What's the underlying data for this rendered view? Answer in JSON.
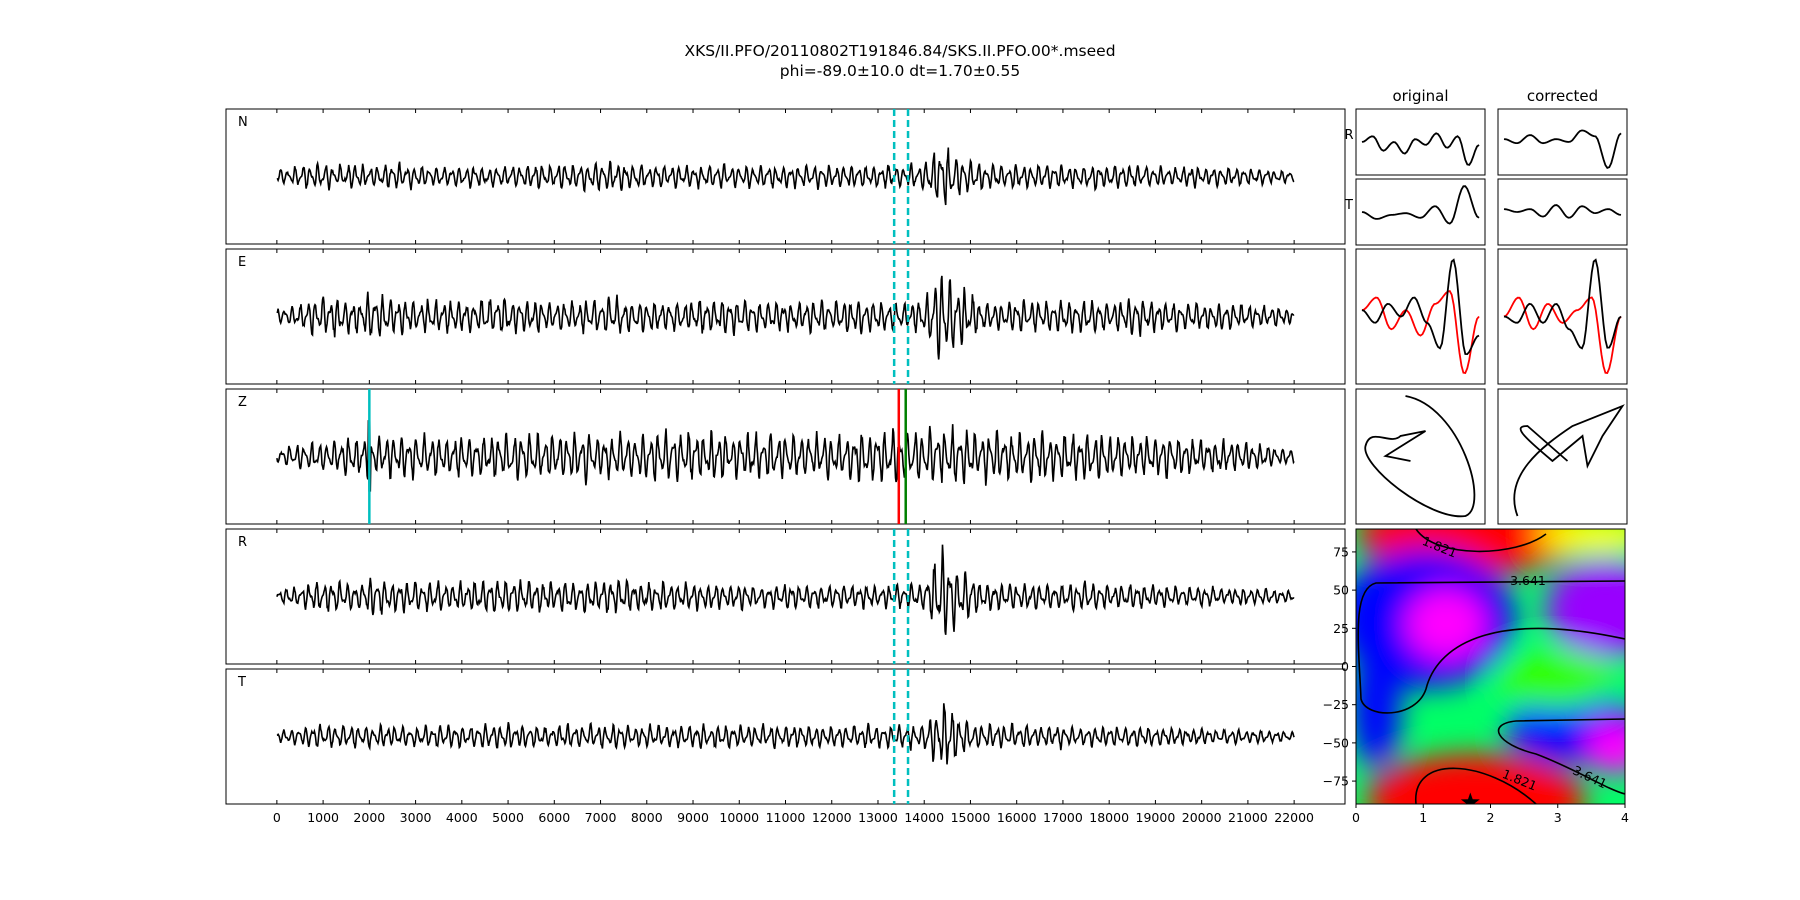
{
  "figure": {
    "title_line1": "XKS/II.PFO/20110802T191846.84/SKS.II.PFO.00*.mseed",
    "title_line2": "phi=-89.0±10.0 dt=1.70±0.55"
  },
  "colors": {
    "trace": "#000000",
    "window_marker": "#00bfbf",
    "pick_red": "#ff0000",
    "pick_green": "#008000",
    "pick_cyan": "#00bfbf"
  },
  "chart_data": [
    {
      "type": "line",
      "description_id": "seismograms",
      "traces": [
        {
          "label": "N",
          "envelope": [
            0.25,
            0.35,
            0.45,
            0.4,
            0.45,
            0.4,
            0.45,
            0.4,
            0.35,
            0.4,
            0.4,
            0.35,
            0.4,
            0.45,
            0.45,
            0.45,
            0.5,
            0.5,
            0.45,
            0.4,
            0.4,
            0.4,
            0.4,
            0.4,
            0.4,
            0.4,
            0.4,
            0.4,
            0.4,
            0.4,
            0.4,
            0.4,
            0.4,
            0.45,
            1.2,
            0.7,
            0.45,
            0.4,
            0.4,
            0.45,
            0.4,
            0.4,
            0.45,
            0.4,
            0.4,
            0.35,
            0.35,
            0.35,
            0.35,
            0.3,
            0.3,
            0.25,
            0.2
          ]
        },
        {
          "label": "E",
          "envelope": [
            0.25,
            0.4,
            0.65,
            0.7,
            0.55,
            0.85,
            0.6,
            0.55,
            0.6,
            0.55,
            0.55,
            0.65,
            0.7,
            0.6,
            0.55,
            0.55,
            0.55,
            0.65,
            0.6,
            0.55,
            0.55,
            0.55,
            0.6,
            0.65,
            0.55,
            0.55,
            0.5,
            0.55,
            0.55,
            0.6,
            0.6,
            0.55,
            0.5,
            0.55,
            1.7,
            1.1,
            0.55,
            0.5,
            0.55,
            0.5,
            0.55,
            0.6,
            0.55,
            0.6,
            0.65,
            0.55,
            0.5,
            0.5,
            0.45,
            0.45,
            0.4,
            0.35,
            0.25
          ]
        },
        {
          "label": "Z",
          "envelope": [
            0.25,
            0.45,
            0.55,
            0.6,
            0.65,
            0.7,
            0.7,
            0.75,
            0.75,
            0.75,
            0.75,
            0.75,
            0.8,
            0.8,
            0.85,
            0.85,
            0.85,
            0.8,
            0.8,
            0.8,
            0.85,
            0.85,
            0.8,
            0.8,
            0.75,
            0.8,
            0.8,
            0.8,
            0.8,
            0.8,
            0.9,
            0.95,
            0.9,
            0.95,
            1.0,
            0.95,
            0.85,
            0.85,
            0.8,
            0.8,
            0.8,
            0.8,
            0.8,
            0.75,
            0.75,
            0.75,
            0.7,
            0.65,
            0.6,
            0.55,
            0.5,
            0.4,
            0.25
          ]
        },
        {
          "label": "R",
          "envelope": [
            0.25,
            0.35,
            0.5,
            0.55,
            0.5,
            0.75,
            0.55,
            0.5,
            0.55,
            0.5,
            0.55,
            0.6,
            0.65,
            0.6,
            0.55,
            0.55,
            0.55,
            0.6,
            0.55,
            0.5,
            0.5,
            0.45,
            0.45,
            0.45,
            0.45,
            0.4,
            0.4,
            0.4,
            0.4,
            0.45,
            0.4,
            0.4,
            0.4,
            0.45,
            1.7,
            1.0,
            0.55,
            0.45,
            0.45,
            0.45,
            0.45,
            0.5,
            0.45,
            0.45,
            0.4,
            0.4,
            0.35,
            0.35,
            0.35,
            0.3,
            0.3,
            0.25,
            0.2
          ]
        },
        {
          "label": "T",
          "envelope": [
            0.2,
            0.3,
            0.4,
            0.4,
            0.4,
            0.4,
            0.35,
            0.35,
            0.4,
            0.4,
            0.4,
            0.4,
            0.45,
            0.4,
            0.35,
            0.4,
            0.4,
            0.4,
            0.4,
            0.4,
            0.4,
            0.4,
            0.4,
            0.4,
            0.4,
            0.4,
            0.4,
            0.4,
            0.4,
            0.4,
            0.4,
            0.4,
            0.4,
            0.45,
            1.3,
            0.7,
            0.4,
            0.4,
            0.4,
            0.35,
            0.4,
            0.35,
            0.35,
            0.35,
            0.35,
            0.3,
            0.3,
            0.3,
            0.25,
            0.25,
            0.25,
            0.2,
            0.15
          ]
        }
      ],
      "x_range": [
        -1100,
        23100
      ],
      "x_data_extent": [
        0,
        22000
      ],
      "x_ticks": [
        "0",
        "1000",
        "2000",
        "3000",
        "4000",
        "5000",
        "6000",
        "7000",
        "8000",
        "9000",
        "10000",
        "11000",
        "12000",
        "13000",
        "14000",
        "15000",
        "16000",
        "17000",
        "18000",
        "19000",
        "20000",
        "21000",
        "22000"
      ],
      "window_lines": [
        13350,
        13650
      ],
      "picks": [
        {
          "x": 2000,
          "color": "cyan"
        },
        {
          "x": 13450,
          "color": "red"
        },
        {
          "x": 13600,
          "color": "green"
        }
      ],
      "grid": false
    },
    {
      "type": "line",
      "description_id": "particle_motion_panels",
      "columns": [
        "original",
        "corrected"
      ],
      "row_labels": [
        "R",
        "T"
      ],
      "original_R": [
        0.5,
        0.6,
        0.35,
        0.5,
        0.3,
        0.55,
        0.45,
        0.65,
        0.4,
        0.6,
        0.1,
        0.45
      ],
      "original_T": [
        0.5,
        0.38,
        0.45,
        0.48,
        0.4,
        0.6,
        0.3,
        0.95,
        0.4
      ],
      "corrected_R": [
        0.55,
        0.48,
        0.62,
        0.48,
        0.55,
        0.5,
        0.7,
        0.6,
        0.05,
        0.65
      ],
      "corrected_T": [
        0.55,
        0.5,
        0.55,
        0.42,
        0.62,
        0.4,
        0.6,
        0.48,
        0.55,
        0.45
      ],
      "original_pair_red": [
        0.55,
        0.65,
        0.4,
        0.55,
        0.35,
        0.6,
        0.7,
        0.05,
        0.5
      ],
      "original_pair_black": [
        0.55,
        0.45,
        0.6,
        0.5,
        0.65,
        0.45,
        0.25,
        0.95,
        0.2,
        0.35
      ],
      "corrected_pair_red": [
        0.5,
        0.65,
        0.4,
        0.6,
        0.45,
        0.55,
        0.65,
        0.05,
        0.5
      ],
      "corrected_pair_black": [
        0.5,
        0.45,
        0.6,
        0.45,
        0.6,
        0.4,
        0.25,
        0.95,
        0.25,
        0.5
      ]
    },
    {
      "type": "heatmap",
      "description_id": "error_surface",
      "x_range": [
        0,
        4
      ],
      "y_range": [
        -90,
        90
      ],
      "x_ticks": [
        "0",
        "1",
        "2",
        "3",
        "4"
      ],
      "y_ticks": [
        "75",
        "50",
        "25",
        "0",
        "−25",
        "−50",
        "−75"
      ],
      "contour_labels": [
        "1.821",
        "3.641",
        "1.821",
        "3.641"
      ],
      "best_fit": {
        "dt": 1.7,
        "phi": -89.0
      }
    }
  ]
}
